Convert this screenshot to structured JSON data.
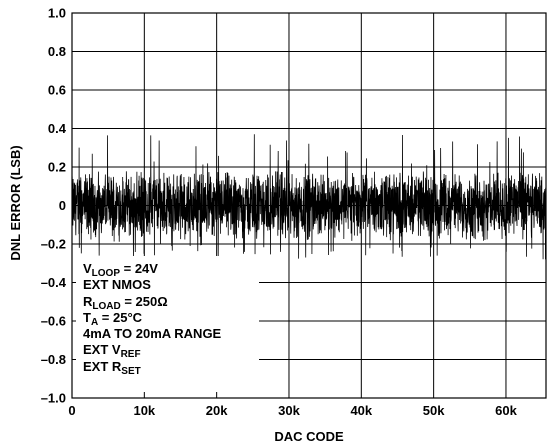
{
  "chart_data": {
    "type": "line",
    "xlabel": "DAC CODE",
    "ylabel": "DNL ERROR (LSB)",
    "xlim": [
      0,
      65535
    ],
    "ylim": [
      -1.0,
      1.0
    ],
    "x_ticks": [
      0,
      10000,
      20000,
      30000,
      40000,
      50000,
      60000
    ],
    "x_tick_labels": [
      "0",
      "10k",
      "20k",
      "30k",
      "40k",
      "50k",
      "60k"
    ],
    "y_ticks": [
      -1.0,
      -0.8,
      -0.6,
      -0.4,
      -0.2,
      0,
      0.2,
      0.4,
      0.6,
      0.8,
      1.0
    ],
    "y_tick_labels": [
      "–1.0",
      "–0.8",
      "–0.6",
      "–0.4",
      "–0.2",
      "0",
      "0.2",
      "0.4",
      "0.6",
      "0.8",
      "1.0"
    ],
    "grid": true,
    "series": [
      {
        "typical_band": [
          -0.2,
          0.2
        ],
        "max_peak": 0.37,
        "min_peak": -0.28,
        "color": "#000000"
      }
    ],
    "annotation_lines": [
      {
        "main": "V",
        "sub": "LOOP",
        "tail": " = 24V"
      },
      {
        "main": "EXT NMOS",
        "sub": "",
        "tail": ""
      },
      {
        "main": "R",
        "sub": "LOAD",
        "tail": " = 250Ω"
      },
      {
        "main": "T",
        "sub": "A",
        "tail": " = 25°C"
      },
      {
        "main": "4mA TO 20mA RANGE",
        "sub": "",
        "tail": ""
      },
      {
        "main": "EXT V",
        "sub": "REF",
        "tail": ""
      },
      {
        "main": "EXT R",
        "sub": "SET",
        "tail": ""
      }
    ]
  }
}
